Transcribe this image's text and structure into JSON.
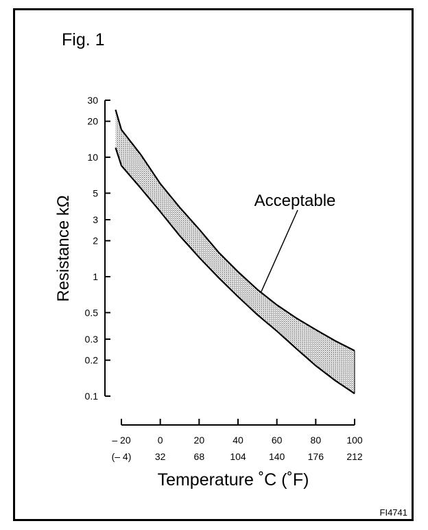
{
  "figure": {
    "title": "Fig. 1",
    "code": "FI4741"
  },
  "chart_data": {
    "type": "area",
    "title": "Fig. 1",
    "ylabel": "Resistance kΩ",
    "xlabel": "Temperature ˚C (˚F)",
    "yscale": "log",
    "ylim": [
      0.1,
      30
    ],
    "xlim": [
      -20,
      100
    ],
    "y_ticks": [
      {
        "value": 30,
        "label": "30"
      },
      {
        "value": 20,
        "label": "20"
      },
      {
        "value": 10,
        "label": "10"
      },
      {
        "value": 5,
        "label": "5"
      },
      {
        "value": 3,
        "label": "3"
      },
      {
        "value": 2,
        "label": "2"
      },
      {
        "value": 1,
        "label": "1"
      },
      {
        "value": 0.5,
        "label": "0.5"
      },
      {
        "value": 0.3,
        "label": "0.3"
      },
      {
        "value": 0.2,
        "label": "0.2"
      },
      {
        "value": 0.1,
        "label": "0.1"
      }
    ],
    "x_ticks": [
      {
        "value": -20,
        "label": "– 20",
        "label2": "(– 4)"
      },
      {
        "value": 0,
        "label": "0",
        "label2": "32"
      },
      {
        "value": 20,
        "label": "20",
        "label2": "68"
      },
      {
        "value": 40,
        "label": "40",
        "label2": "104"
      },
      {
        "value": 60,
        "label": "60",
        "label2": "140"
      },
      {
        "value": 80,
        "label": "80",
        "label2": "176"
      },
      {
        "value": 100,
        "label": "100",
        "label2": "212"
      }
    ],
    "band": {
      "x": [
        -23,
        -20,
        -10,
        0,
        10,
        20,
        30,
        40,
        50,
        60,
        70,
        80,
        90,
        100
      ],
      "upper": [
        25,
        17,
        10.5,
        6.0,
        3.8,
        2.5,
        1.6,
        1.1,
        0.78,
        0.58,
        0.45,
        0.36,
        0.29,
        0.24
      ],
      "lower": [
        12,
        8.5,
        5.5,
        3.5,
        2.2,
        1.45,
        0.98,
        0.68,
        0.48,
        0.35,
        0.25,
        0.18,
        0.135,
        0.105
      ]
    },
    "annotation": {
      "text": "Acceptable",
      "points_to": {
        "x": 52,
        "y": 0.75
      }
    },
    "grid": false,
    "legend": "none"
  }
}
